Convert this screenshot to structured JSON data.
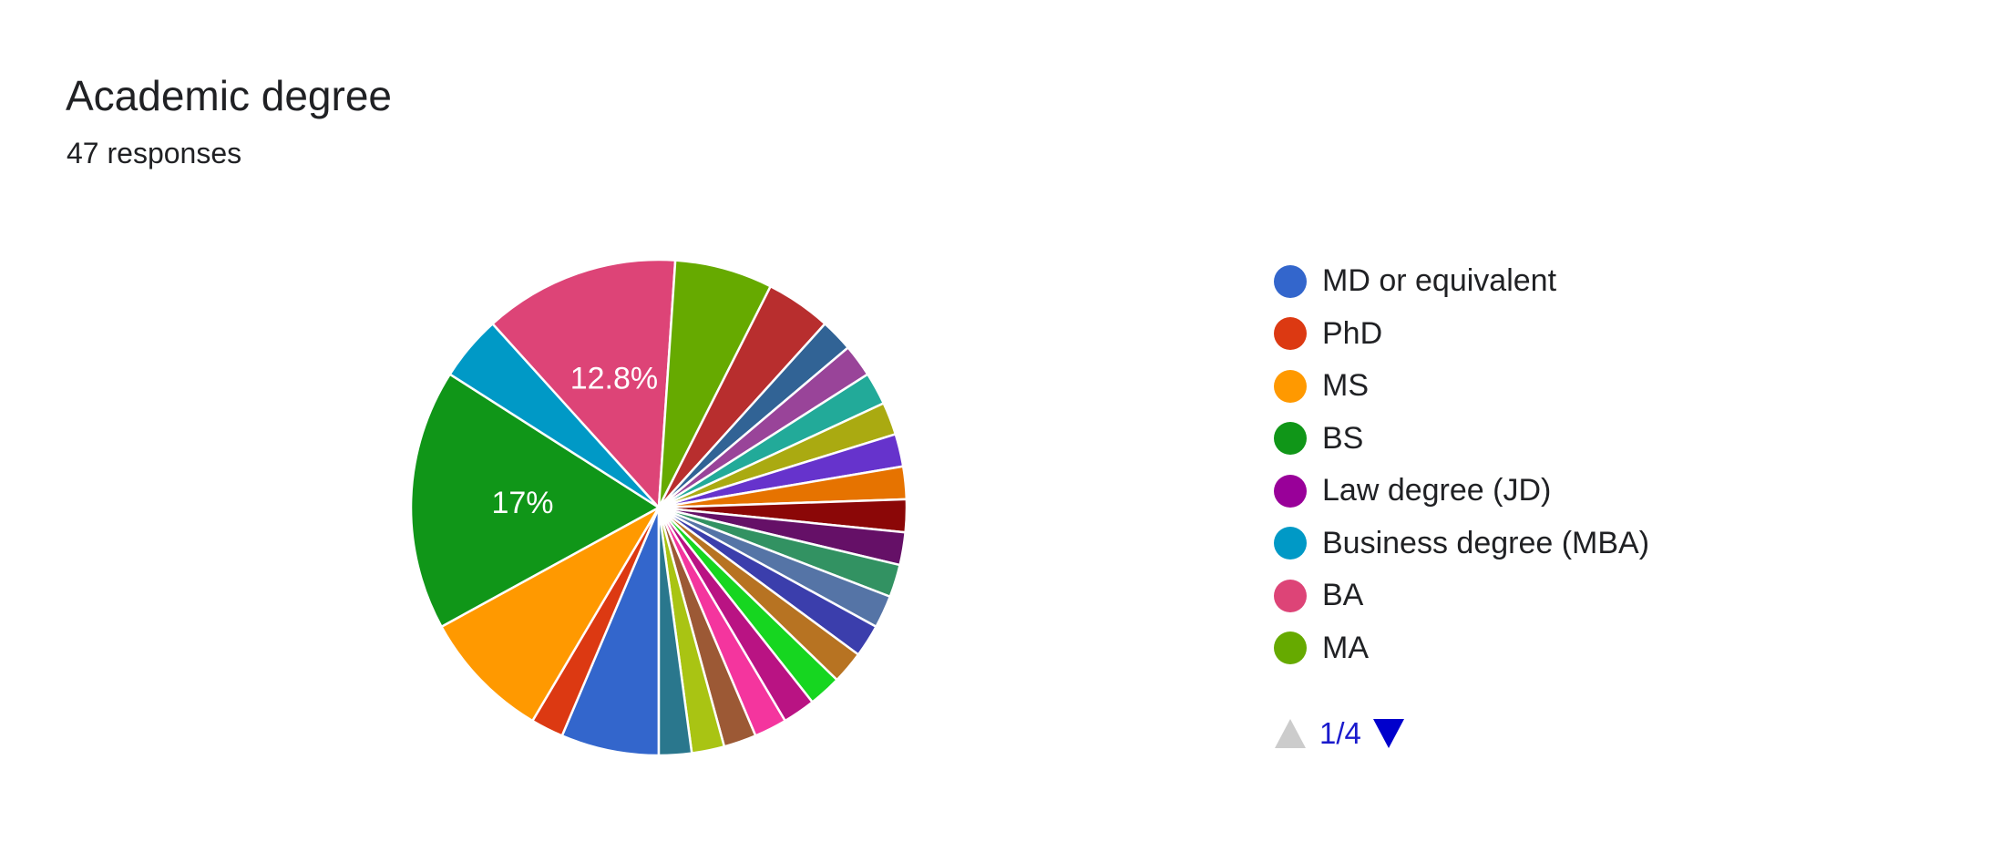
{
  "header": {
    "title": "Academic degree",
    "subtitle": "47 responses"
  },
  "legend_items": [
    {
      "label": "MD or equivalent",
      "color": "#3366cc"
    },
    {
      "label": "PhD",
      "color": "#dc3912"
    },
    {
      "label": "MS",
      "color": "#ff9900"
    },
    {
      "label": "BS",
      "color": "#109618"
    },
    {
      "label": "Law degree (JD)",
      "color": "#990099"
    },
    {
      "label": "Business degree (MBA)",
      "color": "#0099c6"
    },
    {
      "label": "BA",
      "color": "#dd4477"
    },
    {
      "label": "MA",
      "color": "#66aa00"
    }
  ],
  "pager": {
    "page": "1/4",
    "prev_icon": "triangle-up-icon",
    "next_icon": "triangle-down-icon",
    "prev_color": "#cccccc",
    "next_color": "#0000cc"
  },
  "chart_data": {
    "type": "pie",
    "start_angle_deg": 90,
    "direction": "clockwise",
    "slices": [
      {
        "color": "#3366cc",
        "value": 3
      },
      {
        "color": "#dc3912",
        "value": 1
      },
      {
        "color": "#ff9900",
        "value": 4
      },
      {
        "color": "#109618",
        "value": 8,
        "label": "17%"
      },
      {
        "color": "#0099c6",
        "value": 2
      },
      {
        "color": "#dd4477",
        "value": 6,
        "label": "12.8%"
      },
      {
        "color": "#66aa00",
        "value": 3
      },
      {
        "color": "#b82e2e",
        "value": 2
      },
      {
        "color": "#316395",
        "value": 1
      },
      {
        "color": "#994499",
        "value": 1
      },
      {
        "color": "#22aa99",
        "value": 1
      },
      {
        "color": "#aaaa11",
        "value": 1
      },
      {
        "color": "#6633cc",
        "value": 1
      },
      {
        "color": "#e67300",
        "value": 1
      },
      {
        "color": "#8b0707",
        "value": 1
      },
      {
        "color": "#651067",
        "value": 1
      },
      {
        "color": "#329262",
        "value": 1
      },
      {
        "color": "#5574a6",
        "value": 1
      },
      {
        "color": "#3b3eac",
        "value": 1
      },
      {
        "color": "#b77322",
        "value": 1
      },
      {
        "color": "#16d620",
        "value": 1
      },
      {
        "color": "#b91383",
        "value": 1
      },
      {
        "color": "#f4359e",
        "value": 1
      },
      {
        "color": "#9c5935",
        "value": 1
      },
      {
        "color": "#a9c413",
        "value": 1
      },
      {
        "color": "#2a778d",
        "value": 1
      }
    ]
  }
}
